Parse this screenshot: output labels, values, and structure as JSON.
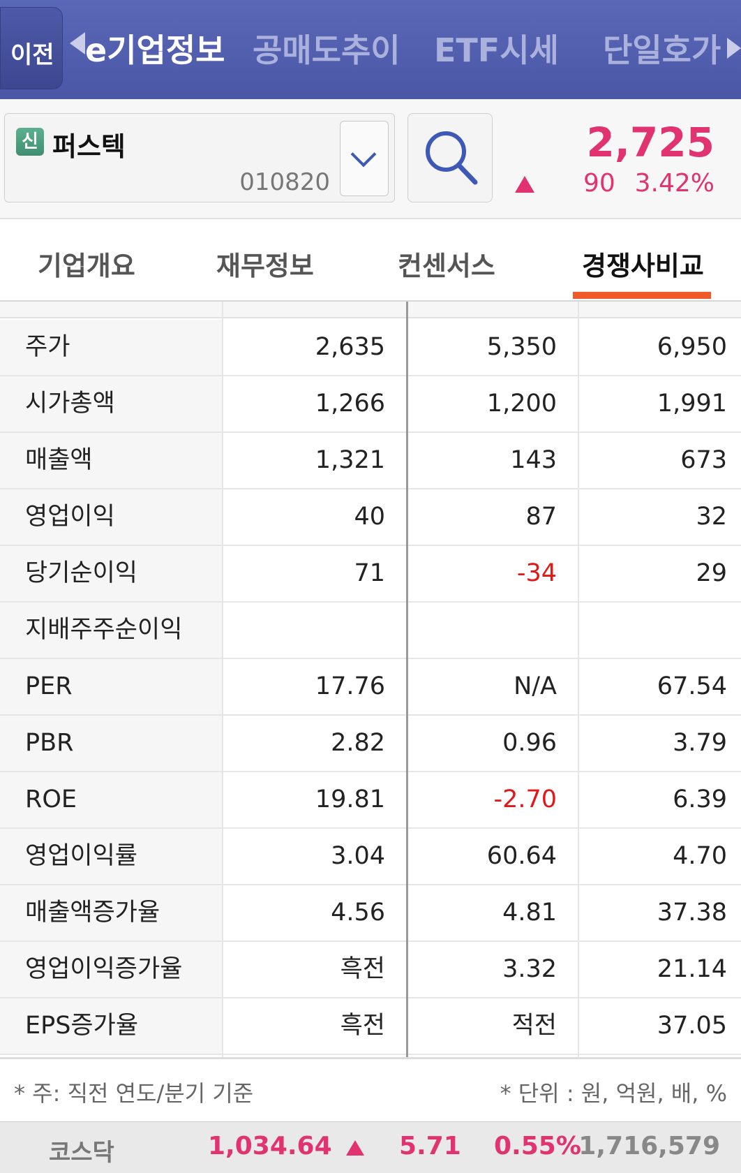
{
  "nav": {
    "back_label": "이전",
    "items": [
      "e기업정보",
      "공매도추이",
      "ETF시세",
      "단일호가"
    ],
    "active_index": 0
  },
  "stock": {
    "badge": "신",
    "name": "퍼스텍",
    "code": "010820",
    "price": "2,725",
    "change": "90",
    "change_pct": "3.42%",
    "direction": "up"
  },
  "tabs": [
    "기업개요",
    "재무정보",
    "컨센서스",
    "경쟁사비교"
  ],
  "active_tab": 3,
  "table": {
    "rows": [
      {
        "label": "주가",
        "values": [
          "2,635",
          "5,350",
          "6,950"
        ]
      },
      {
        "label": "시가총액",
        "values": [
          "1,266",
          "1,200",
          "1,991"
        ]
      },
      {
        "label": "매출액",
        "values": [
          "1,321",
          "143",
          "673"
        ]
      },
      {
        "label": "영업이익",
        "values": [
          "40",
          "87",
          "32"
        ]
      },
      {
        "label": "당기순이익",
        "values": [
          "71",
          "-34",
          "29"
        ]
      },
      {
        "label": "지배주주순이익",
        "values": [
          "",
          "",
          ""
        ]
      },
      {
        "label": "PER",
        "values": [
          "17.76",
          "N/A",
          "67.54"
        ]
      },
      {
        "label": "PBR",
        "values": [
          "2.82",
          "0.96",
          "3.79"
        ]
      },
      {
        "label": "ROE",
        "values": [
          "19.81",
          "-2.70",
          "6.39"
        ]
      },
      {
        "label": "영업이익률",
        "values": [
          "3.04",
          "60.64",
          "4.70"
        ]
      },
      {
        "label": "매출액증가율",
        "values": [
          "4.56",
          "4.81",
          "37.38"
        ]
      },
      {
        "label": "영업이익증가율",
        "values": [
          "흑전",
          "3.32",
          "21.14"
        ]
      },
      {
        "label": "EPS증가율",
        "values": [
          "흑전",
          "적전",
          "37.05"
        ]
      }
    ]
  },
  "footnote": {
    "left": "* 주: 직전 연도/분기 기준",
    "right": "* 단위 : 원, 억원, 배, %"
  },
  "ticker": {
    "name": "코스닥",
    "value": "1,034.64",
    "change": "5.71",
    "change_pct": "0.55%",
    "volume": "1,716,579"
  },
  "colors": {
    "up": "#e0336f",
    "negative": "#e01818",
    "nav_bg": "#4a56a6",
    "tab_accent": "#f05a2a"
  }
}
